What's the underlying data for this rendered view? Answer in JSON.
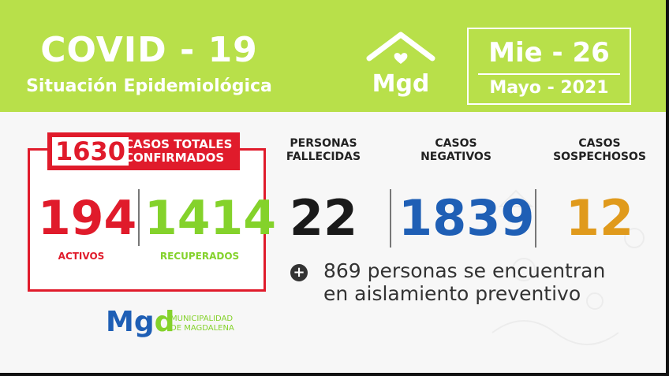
{
  "header": {
    "title": "COVID - 19",
    "subtitle": "Situación Epidemiológica",
    "logo_text": "Mgd",
    "date_day": "Mie - 26",
    "date_month": "Mayo - 2021",
    "bg_color": "#b8e04a"
  },
  "cases": {
    "total": "1630",
    "total_label_line1": "CASOS TOTALES",
    "total_label_line2": "CONFIRMADOS",
    "activos_value": "194",
    "activos_label": "ACTIVOS",
    "recuperados_value": "1414",
    "recuperados_label": "RECUPERADOS",
    "red_color": "#e01b2b",
    "green_color": "#84d22b"
  },
  "stats": [
    {
      "label_line1": "PERSONAS",
      "label_line2": "FALLECIDAS",
      "value": "22",
      "color": "#1a1a1a"
    },
    {
      "label_line1": "CASOS",
      "label_line2": "NEGATIVOS",
      "value": "1839",
      "color": "#1f5fb5"
    },
    {
      "label_line1": "CASOS",
      "label_line2": "SOSPECHOSOS",
      "value": "12",
      "color": "#e09a1c"
    }
  ],
  "note": {
    "icon": "plus-icon",
    "line1": "869 personas se encuentran",
    "line2": "en aislamiento preventivo"
  },
  "footer": {
    "logo_m": "Mg",
    "logo_d": "d",
    "org_line1": "MUNICIPALIDAD",
    "org_line2": "DE MAGDALENA"
  }
}
